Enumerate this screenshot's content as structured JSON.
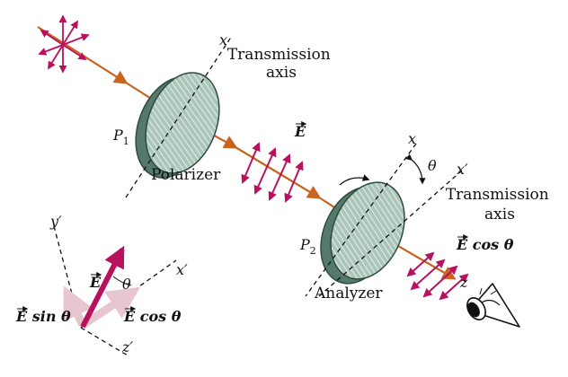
{
  "labels": {
    "transmission_axis_1": [
      "Transmission",
      "axis"
    ],
    "transmission_axis_2": [
      "Transmission",
      "axis"
    ],
    "polarizer": "Polarizer",
    "analyzer": "Analyzer",
    "p1": "P",
    "p1_sub": "1",
    "p2": "P",
    "p2_sub": "2",
    "x1": "x",
    "x2": "x",
    "x_prime": "x′",
    "theta_top": "θ",
    "e_mid": "E",
    "e_cos_right": "E cos θ",
    "z": "z",
    "inset_y_prime": "y′",
    "inset_x_prime": "x′",
    "inset_z_prime": "z′",
    "inset_e": "E",
    "inset_theta": "θ",
    "inset_e_sin": "E sin θ",
    "inset_e_cos": "E cos θ"
  },
  "colors": {
    "beam": "#c8641e",
    "field": "#b8125e",
    "field_light": "#e8c6cf",
    "disk_face": "#a9c6b9",
    "disk_edge": "#557a6c"
  }
}
